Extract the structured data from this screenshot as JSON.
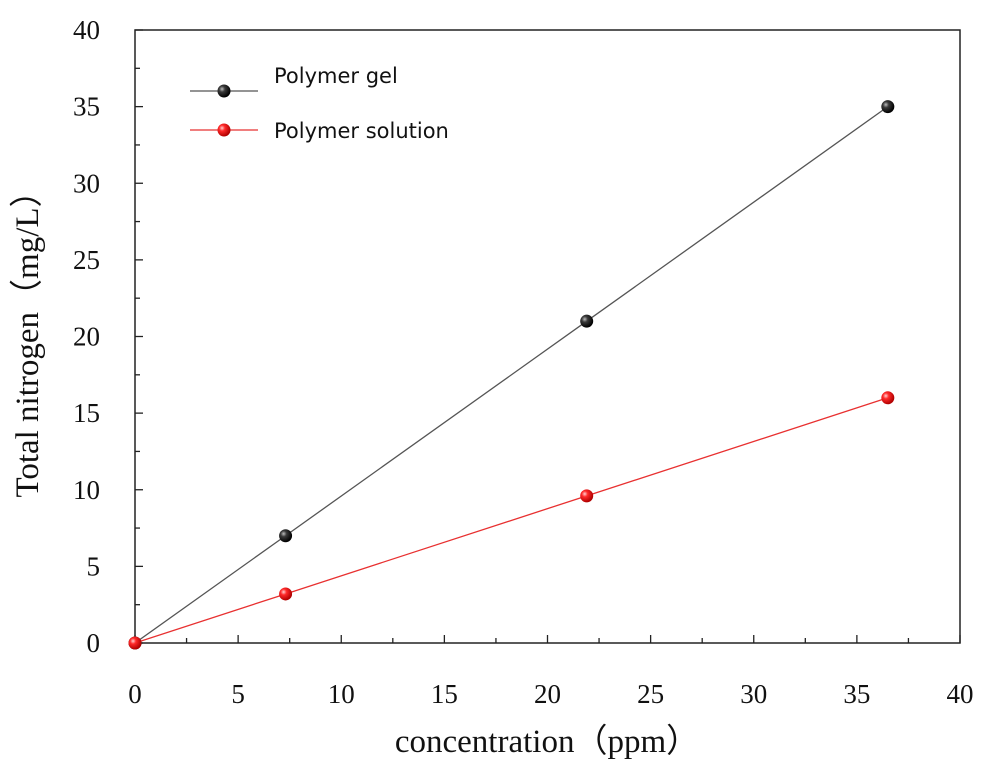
{
  "chart_data": {
    "type": "line",
    "xlabel": "concentration（ppm）",
    "ylabel": "Total nitrogen（mg/L）",
    "xlim": [
      0,
      40
    ],
    "ylim": [
      0,
      40
    ],
    "xticks": [
      0,
      5,
      10,
      15,
      20,
      25,
      30,
      35,
      40
    ],
    "yticks": [
      0,
      5,
      10,
      15,
      20,
      25,
      30,
      35,
      40
    ],
    "grid": false,
    "legend_position": "top-left",
    "series": [
      {
        "name": "Polymer gel",
        "color": "#000000",
        "line_color": "#555555",
        "x": [
          0,
          7.3,
          21.9,
          36.5
        ],
        "y": [
          0,
          7,
          21,
          35
        ]
      },
      {
        "name": "Polymer solution",
        "color": "#ee1111",
        "line_color": "#e83030",
        "x": [
          0,
          7.3,
          21.9,
          36.5
        ],
        "y": [
          0,
          3.2,
          9.6,
          16
        ]
      }
    ]
  }
}
